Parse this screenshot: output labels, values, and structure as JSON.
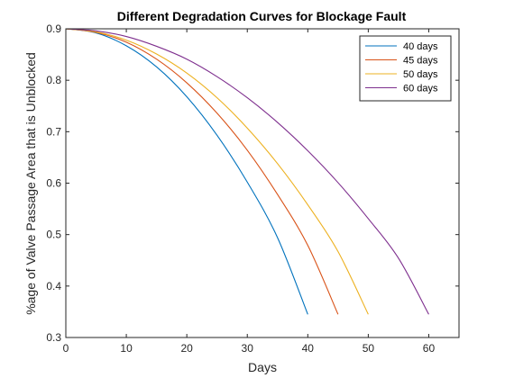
{
  "chart_data": {
    "type": "line",
    "title": "Different Degradation Curves for Blockage Fault",
    "xlabel": "Days",
    "ylabel": "%age of Valve Passage Area that is Unblocked",
    "xlim": [
      0,
      65
    ],
    "ylim": [
      0.3,
      0.9
    ],
    "xticks": [
      "0",
      "10",
      "20",
      "30",
      "40",
      "50",
      "60"
    ],
    "yticks": [
      "0.3",
      "0.4",
      "0.5",
      "0.6",
      "0.7",
      "0.8",
      "0.9"
    ],
    "grid": false,
    "legend_position": "top-right",
    "series": [
      {
        "name": "40 days",
        "color": "#0072BD",
        "x": [
          0,
          5,
          10,
          15,
          20,
          25,
          30,
          35,
          40
        ],
        "y": [
          0.9,
          0.892,
          0.867,
          0.826,
          0.768,
          0.693,
          0.602,
          0.494,
          0.345
        ]
      },
      {
        "name": "45 days",
        "color": "#D95319",
        "x": [
          0,
          5,
          10,
          15,
          20,
          25,
          30,
          35,
          40,
          45
        ],
        "y": [
          0.9,
          0.893,
          0.874,
          0.841,
          0.795,
          0.736,
          0.664,
          0.578,
          0.479,
          0.345
        ]
      },
      {
        "name": "50 days",
        "color": "#EDB120",
        "x": [
          0,
          5,
          10,
          15,
          20,
          25,
          30,
          35,
          40,
          45,
          50
        ],
        "y": [
          0.9,
          0.894,
          0.878,
          0.851,
          0.814,
          0.766,
          0.707,
          0.638,
          0.558,
          0.467,
          0.345
        ]
      },
      {
        "name": "60 days",
        "color": "#7E2F8E",
        "x": [
          0,
          5,
          10,
          15,
          20,
          25,
          30,
          35,
          40,
          45,
          50,
          55,
          60
        ],
        "y": [
          0.9,
          0.896,
          0.885,
          0.866,
          0.841,
          0.807,
          0.766,
          0.718,
          0.663,
          0.601,
          0.531,
          0.454,
          0.345
        ]
      }
    ]
  }
}
